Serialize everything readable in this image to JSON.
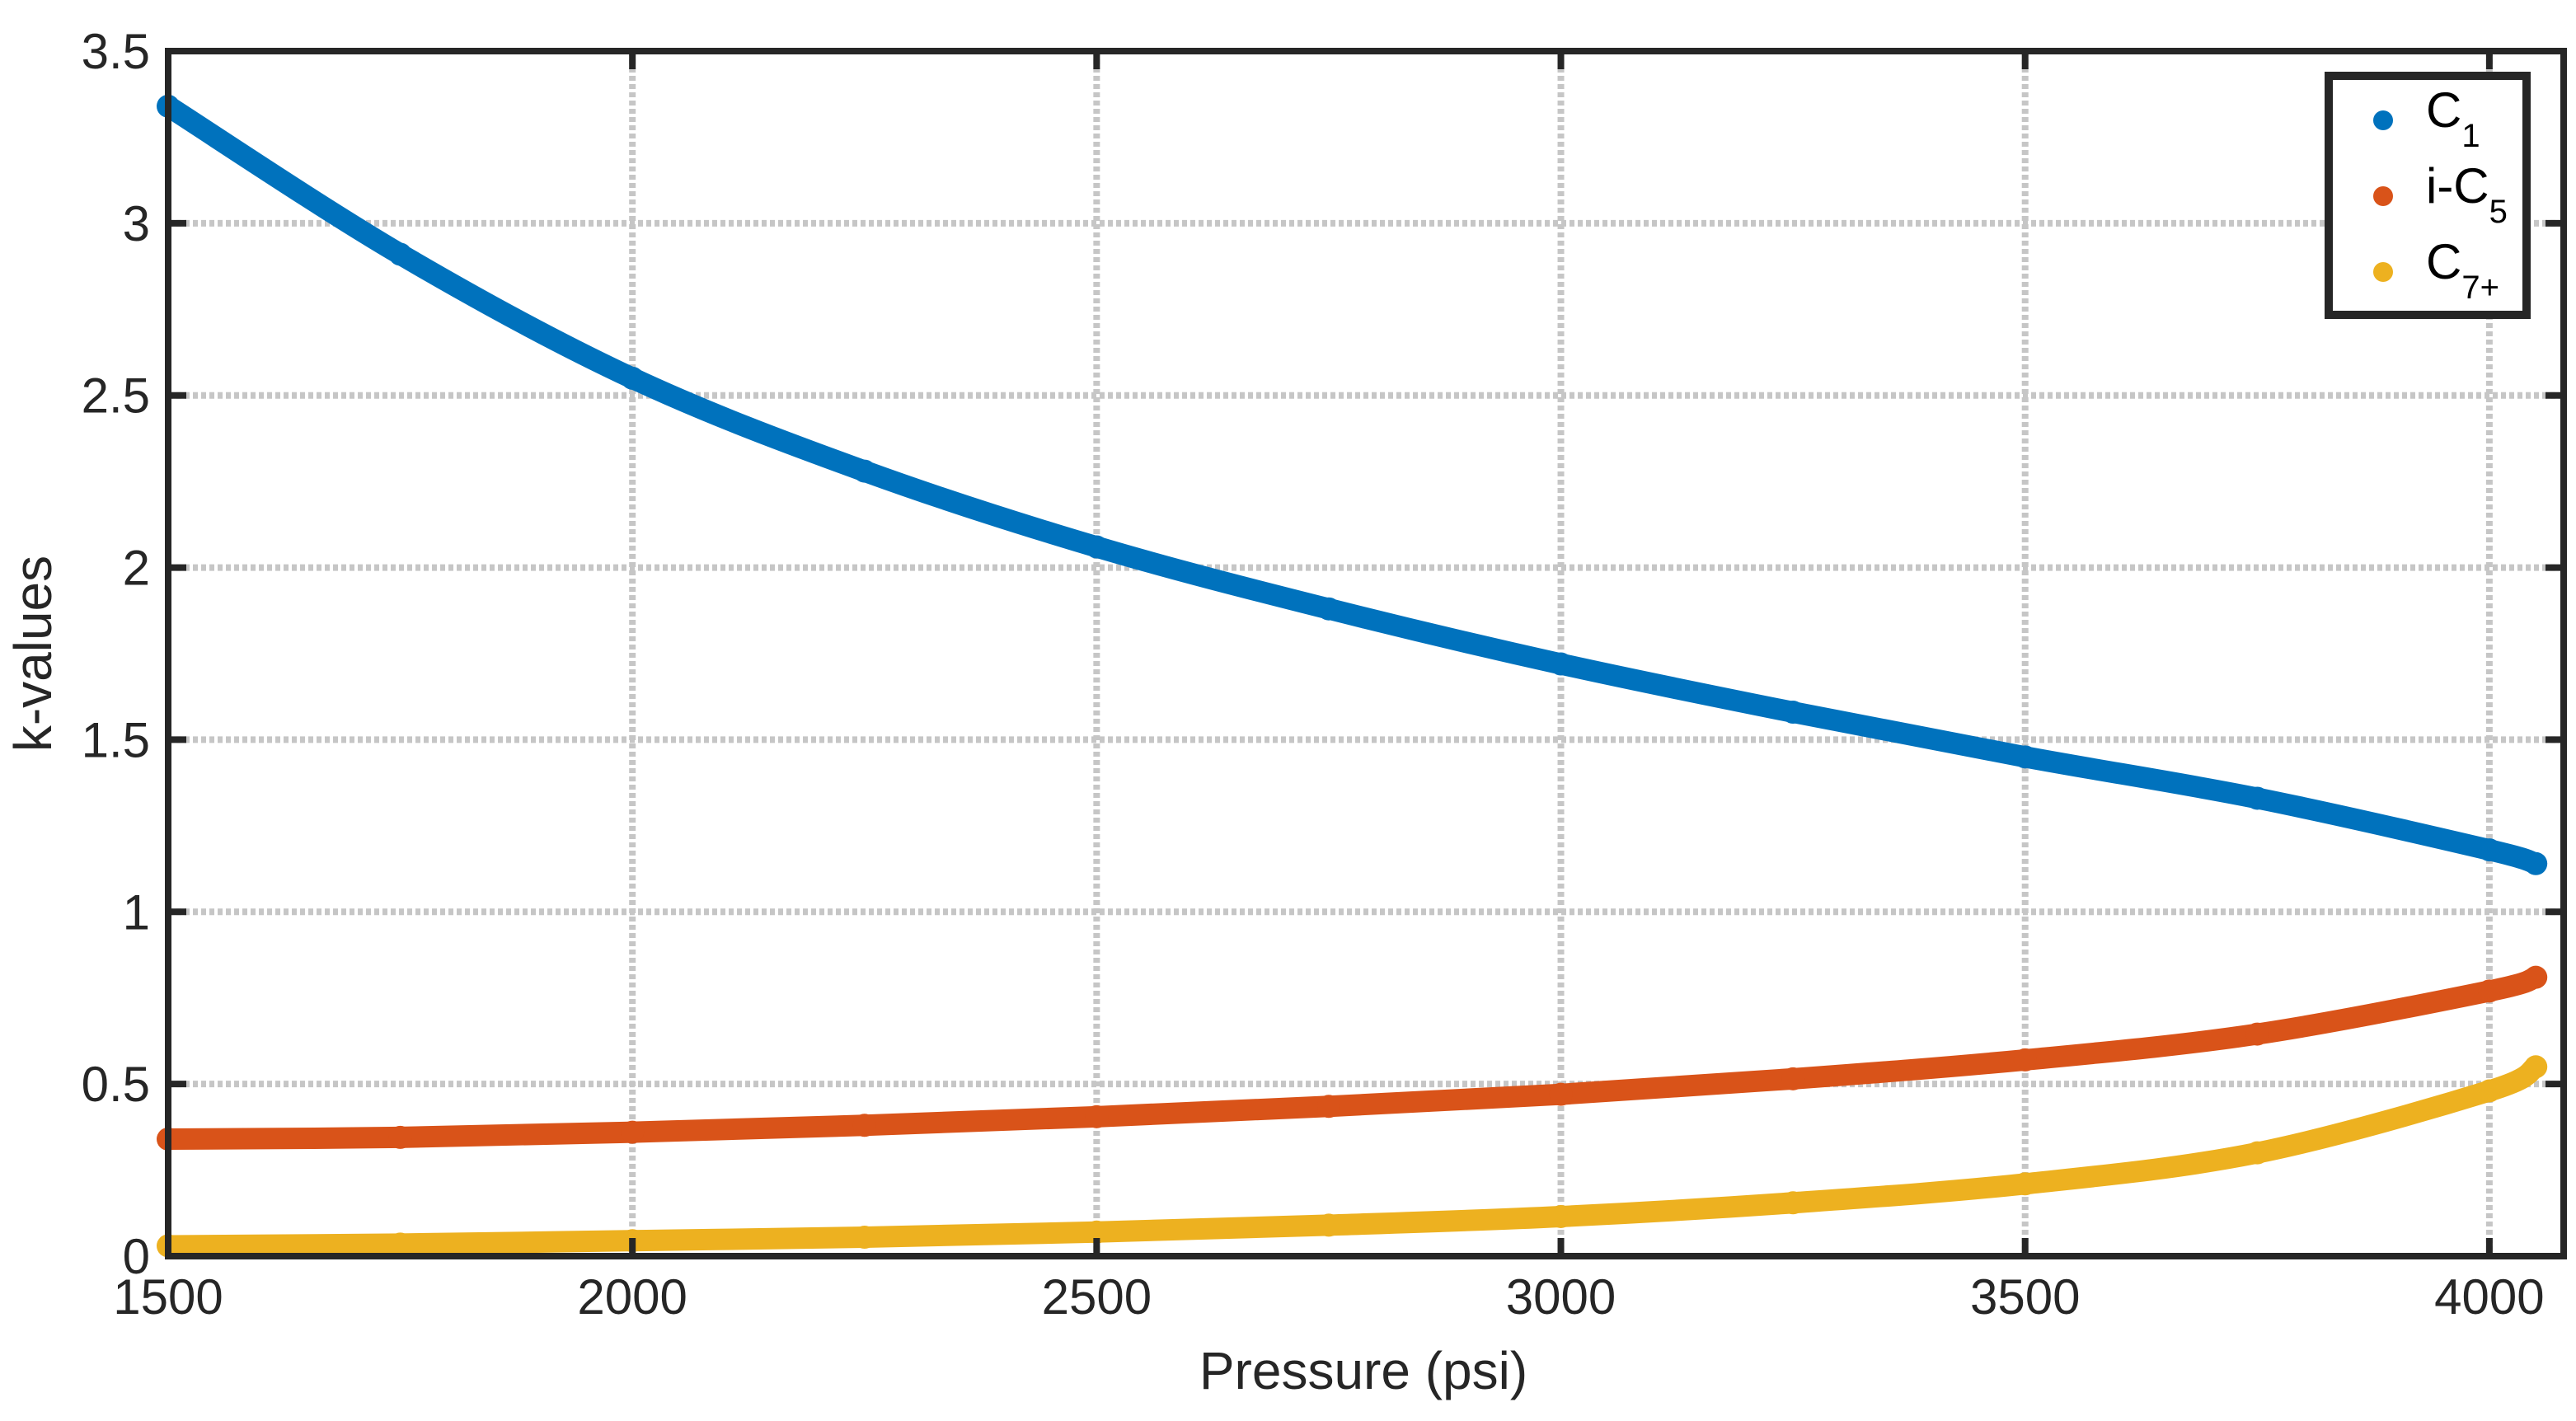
{
  "chart_data": {
    "type": "scatter",
    "title": "",
    "xlabel": "Pressure (psi)",
    "ylabel": "k-values",
    "xlim": [
      1500,
      4080
    ],
    "ylim": [
      0,
      3.5
    ],
    "xticks": [
      1500,
      2000,
      2500,
      3000,
      3500,
      4000
    ],
    "yticks": [
      0,
      0.5,
      1,
      1.5,
      2,
      2.5,
      3,
      3.5
    ],
    "xtick_labels": [
      "1500",
      "2000",
      "2500",
      "3000",
      "3500",
      "4000"
    ],
    "ytick_labels": [
      "0",
      "0.5",
      "1",
      "1.5",
      "2",
      "2.5",
      "3",
      "3.5"
    ],
    "grid": true,
    "legend_position": "top-right",
    "x": [
      1500,
      1750,
      2000,
      2250,
      2500,
      2750,
      3000,
      3250,
      3500,
      3750,
      4000,
      4050
    ],
    "series": [
      {
        "name": "C1",
        "legend_base": "C",
        "legend_sub": "1",
        "color": "#0072BD",
        "values": [
          3.34,
          2.91,
          2.55,
          2.28,
          2.06,
          1.88,
          1.72,
          1.58,
          1.45,
          1.33,
          1.18,
          1.14
        ]
      },
      {
        "name": "i-C5",
        "legend_base": "i-C",
        "legend_sub": "5",
        "color": "#D95319",
        "values": [
          0.34,
          0.345,
          0.36,
          0.38,
          0.405,
          0.435,
          0.47,
          0.515,
          0.57,
          0.645,
          0.77,
          0.81
        ]
      },
      {
        "name": "C7+",
        "legend_base": "C",
        "legend_sub": "7+",
        "color": "#EDB120",
        "values": [
          0.03,
          0.035,
          0.045,
          0.055,
          0.07,
          0.09,
          0.115,
          0.155,
          0.21,
          0.3,
          0.48,
          0.55
        ]
      }
    ]
  }
}
